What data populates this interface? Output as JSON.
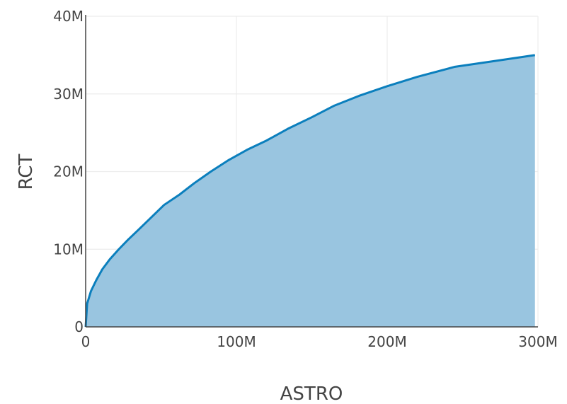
{
  "chart_data": {
    "type": "area",
    "title": "",
    "xlabel": "ASTRO",
    "ylabel": "RCT",
    "xlim": [
      0,
      300000000
    ],
    "ylim": [
      0,
      40000000
    ],
    "x_ticks": [
      {
        "value": 0,
        "label": "0"
      },
      {
        "value": 100000000,
        "label": "100M"
      },
      {
        "value": 200000000,
        "label": "200M"
      },
      {
        "value": 300000000,
        "label": "300M"
      }
    ],
    "y_ticks": [
      {
        "value": 0,
        "label": "0"
      },
      {
        "value": 10000000,
        "label": "10M"
      },
      {
        "value": 20000000,
        "label": "20M"
      },
      {
        "value": 30000000,
        "label": "30M"
      },
      {
        "value": 40000000,
        "label": "40M"
      }
    ],
    "grid": true,
    "colors": {
      "line": "#0b7fbd",
      "fill": "#99c5e0",
      "grid": "#ececec",
      "axis": "#444444"
    },
    "series": [
      {
        "x": [
          0,
          1000000,
          3500000,
          7000000,
          11000000,
          16000000,
          22000000,
          28000000,
          35000000,
          43000000,
          52000000,
          62000000,
          72000000,
          83000000,
          95000000,
          107000000,
          120000000,
          134000000,
          150000000,
          165000000,
          182000000,
          200000000,
          220000000,
          245000000,
          270000000,
          298000000
        ],
        "y": [
          0,
          3000000,
          4600000,
          6000000,
          7400000,
          8700000,
          10000000,
          11200000,
          12500000,
          14000000,
          15700000,
          17000000,
          18500000,
          20000000,
          21500000,
          22800000,
          24000000,
          25500000,
          27000000,
          28500000,
          29800000,
          31000000,
          32200000,
          33500000,
          34200000,
          35000000
        ]
      }
    ]
  }
}
